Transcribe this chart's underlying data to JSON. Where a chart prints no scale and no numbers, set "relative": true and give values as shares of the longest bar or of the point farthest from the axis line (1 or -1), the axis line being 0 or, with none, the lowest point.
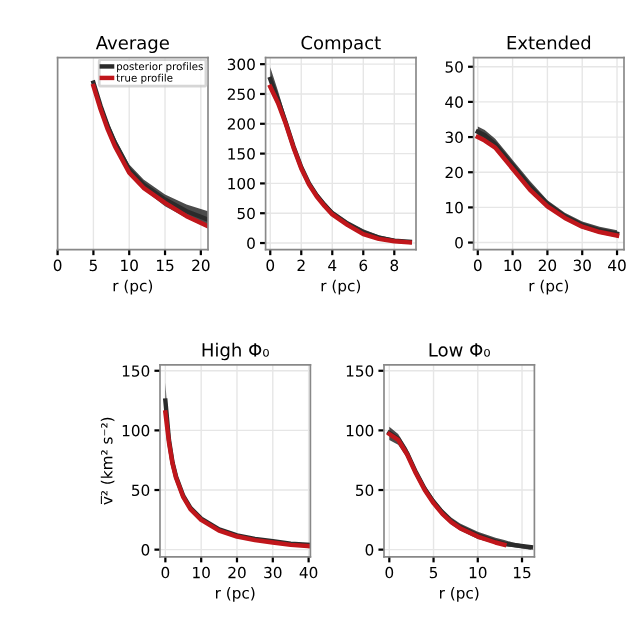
{
  "chart_data": [
    {
      "type": "line",
      "title": "Average",
      "xlabel": "r (pc)",
      "relative": true,
      "xlim": [
        0,
        21
      ],
      "xticks": [
        0,
        5,
        10,
        15,
        20
      ],
      "grid": true,
      "legend": "top right",
      "series": [
        {
          "name": "posterior profiles",
          "color": "#2b2b2b",
          "x": [
            5,
            6,
            7,
            8,
            10,
            12,
            15,
            18,
            21
          ],
          "values": [
            1.0,
            0.86,
            0.74,
            0.64,
            0.48,
            0.39,
            0.3,
            0.23,
            0.18
          ],
          "lower": [
            0.97,
            0.83,
            0.71,
            0.61,
            0.45,
            0.36,
            0.26,
            0.19,
            0.13
          ],
          "upper": [
            1.0,
            0.89,
            0.77,
            0.67,
            0.51,
            0.42,
            0.33,
            0.27,
            0.23
          ]
        },
        {
          "name": "true profile",
          "color": "#c0161b",
          "x": [
            5,
            6,
            7,
            8,
            10,
            12,
            15,
            18,
            21
          ],
          "values": [
            0.98,
            0.84,
            0.72,
            0.62,
            0.46,
            0.37,
            0.28,
            0.2,
            0.14
          ]
        }
      ]
    },
    {
      "type": "line",
      "title": "Compact",
      "xlabel": "r (pc)",
      "xlim": [
        -0.3,
        9.4
      ],
      "xticks": [
        0,
        2,
        4,
        6,
        8
      ],
      "ylim": [
        -11,
        311
      ],
      "yticks": [
        0,
        50,
        100,
        150,
        200,
        250,
        300
      ],
      "grid": true,
      "series": [
        {
          "color": "#2b2b2b",
          "x": [
            0,
            0.5,
            1,
            1.5,
            2,
            2.5,
            3,
            3.5,
            4,
            5,
            6,
            7,
            8,
            9
          ],
          "values": [
            275,
            240,
            202,
            162,
            127,
            100,
            80,
            64,
            50,
            32,
            18,
            9,
            4,
            2
          ],
          "lower": [
            255,
            228,
            194,
            155,
            121,
            95,
            75,
            59,
            45,
            27,
            13,
            5,
            1,
            0
          ],
          "upper": [
            295,
            255,
            212,
            170,
            133,
            105,
            85,
            69,
            55,
            37,
            23,
            13,
            7,
            4
          ]
        },
        {
          "color": "#c0161b",
          "x": [
            0,
            0.5,
            1,
            1.5,
            2,
            2.5,
            3,
            3.5,
            4,
            5,
            6,
            7,
            8,
            9
          ],
          "values": [
            262,
            235,
            200,
            160,
            125,
            98,
            78,
            62,
            48,
            30,
            15,
            7,
            3,
            1
          ]
        }
      ]
    },
    {
      "type": "line",
      "title": "Extended",
      "xlabel": "r (pc)",
      "xlim": [
        -1.2,
        42
      ],
      "xticks": [
        0,
        10,
        20,
        30,
        40
      ],
      "ylim": [
        -2,
        52.6
      ],
      "yticks": [
        0,
        10,
        20,
        30,
        40,
        50
      ],
      "grid": true,
      "series": [
        {
          "color": "#2b2b2b",
          "x": [
            0,
            2,
            5,
            10,
            15,
            20,
            25,
            30,
            35,
            40
          ],
          "values": [
            31.5,
            30.5,
            28,
            22,
            16,
            11,
            7.5,
            5,
            3.5,
            2.5
          ],
          "lower": [
            30,
            29,
            26.5,
            20.5,
            14.5,
            10,
            6.5,
            4,
            2.5,
            1.5
          ],
          "upper": [
            33,
            32,
            29.5,
            23.5,
            17.5,
            12,
            8.5,
            6,
            4.5,
            3.5
          ]
        },
        {
          "color": "#c0161b",
          "x": [
            0,
            2,
            5,
            10,
            15,
            20,
            25,
            30,
            35,
            40
          ],
          "values": [
            30,
            29,
            27,
            21,
            15,
            10.3,
            7,
            4.5,
            3,
            2
          ]
        }
      ]
    },
    {
      "type": "line",
      "title": "High Φ₀",
      "xlabel": "r (pc)",
      "ylabel": "v̅² (km² s⁻²)",
      "xlim": [
        -1.5,
        40.5
      ],
      "xticks": [
        0,
        10,
        20,
        30,
        40
      ],
      "ylim": [
        -6,
        155
      ],
      "yticks": [
        0,
        50,
        100,
        150
      ],
      "grid": true,
      "series": [
        {
          "color": "#2b2b2b",
          "x": [
            0,
            1,
            2,
            3,
            5,
            7,
            10,
            15,
            20,
            25,
            30,
            35,
            40
          ],
          "values": [
            125,
            92,
            73,
            61,
            45,
            35,
            26,
            17,
            12,
            9,
            7,
            5,
            4
          ],
          "lower": [
            112,
            88,
            71,
            59,
            43,
            33,
            24,
            15,
            10,
            7,
            5,
            3.5,
            2.5
          ],
          "upper": [
            140,
            97,
            76,
            63,
            46,
            36,
            27,
            18,
            13,
            10,
            8,
            6,
            5
          ]
        },
        {
          "color": "#c0161b",
          "x": [
            0,
            1,
            2,
            3,
            5,
            7,
            10,
            15,
            20,
            25,
            30,
            35,
            40
          ],
          "values": [
            115,
            90,
            72,
            60,
            44,
            34,
            25,
            16,
            11,
            8,
            6,
            4,
            3
          ]
        }
      ]
    },
    {
      "type": "line",
      "title": "Low Φ₀",
      "xlabel": "r (pc)",
      "xlim": [
        -0.6,
        16.4
      ],
      "xticks": [
        0,
        5,
        10,
        15
      ],
      "ylim": [
        -6,
        155
      ],
      "yticks": [
        0,
        50,
        100,
        150
      ],
      "grid": true,
      "series": [
        {
          "color": "#2b2b2b",
          "x": [
            0,
            1,
            2,
            3,
            4,
            5,
            6,
            7,
            8,
            10,
            12,
            13,
            14,
            16
          ],
          "values": [
            98,
            93,
            81,
            65,
            51,
            40,
            31,
            24,
            19,
            12,
            7,
            5,
            4,
            2
          ],
          "lower": [
            92,
            88,
            77,
            62,
            48,
            37,
            28,
            21,
            16,
            9,
            5,
            3,
            2,
            0
          ],
          "upper": [
            103,
            97,
            85,
            68,
            54,
            43,
            34,
            27,
            22,
            15,
            10,
            8,
            6,
            3
          ]
        },
        {
          "color": "#c0161b",
          "x": [
            0,
            1,
            2,
            3,
            4,
            5,
            6,
            7,
            8,
            10,
            12,
            13
          ],
          "values": [
            97,
            92,
            80,
            64,
            50,
            39,
            30,
            23,
            18,
            11,
            6,
            4
          ]
        }
      ]
    }
  ]
}
